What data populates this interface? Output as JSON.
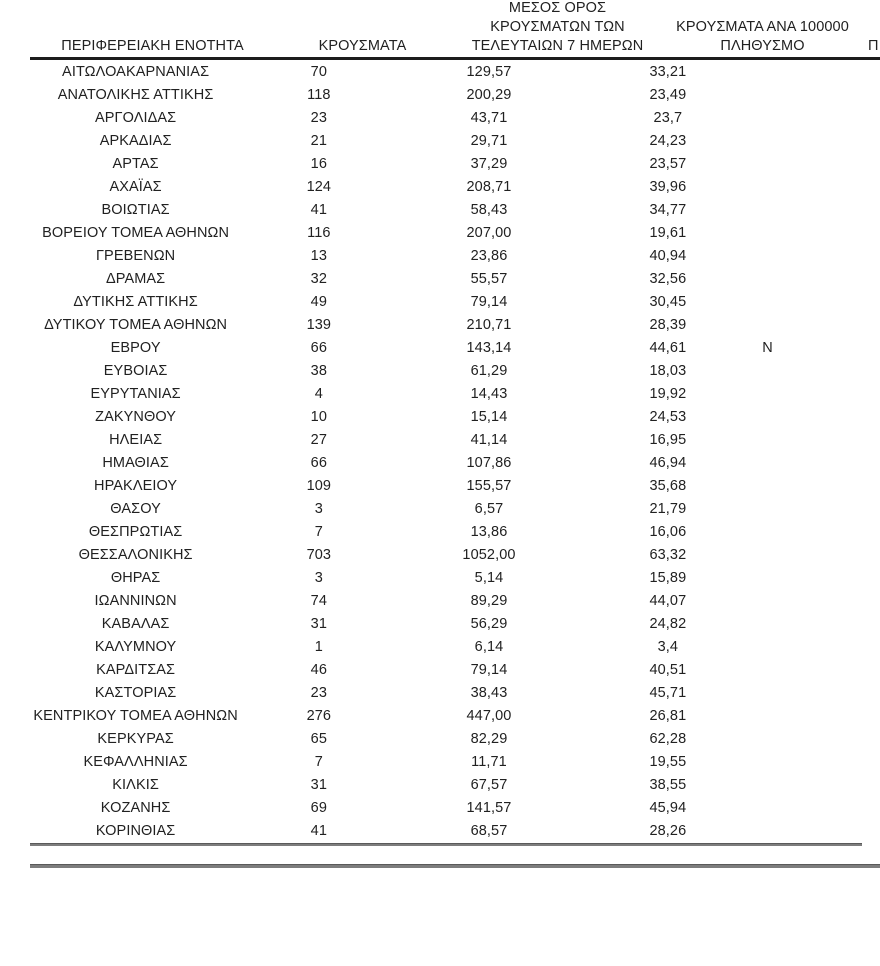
{
  "page": {
    "background_color": "#ffffff",
    "text_color": "#212121",
    "header_rule_color": "#1c1c1c",
    "bottom_rule_color": "#7d7d7d"
  },
  "table": {
    "headers": {
      "region": "ΠΕΡΙΦΕΡΕΙΑΚΗ ΕΝΟΤΗΤΑ",
      "cases": "ΚΡΟΥΣΜΑΤΑ",
      "avg7_lines": [
        "ΜΕΣΟΣ ΟΡΟΣ",
        "ΚΡΟΥΣΜΑΤΩΝ ΤΩΝ",
        "ΤΕΛΕΥΤΑΙΩΝ 7 ΗΜΕΡΩΝ"
      ],
      "per100k_lines": [
        "ΚΡΟΥΣΜΑΤΑ ΑΝΑ 100000",
        "ΠΛΗΘΥΣΜΟ"
      ],
      "cutoff": "Π"
    },
    "rows": [
      {
        "region": "ΑΙΤΩΛΟΑΚΑΡΝΑΝΙΑΣ",
        "cases": "70",
        "avg7": "129,57",
        "per100k": "33,21",
        "extra": ""
      },
      {
        "region": "ΑΝΑΤΟΛΙΚΗΣ ΑΤΤΙΚΗΣ",
        "cases": "118",
        "avg7": "200,29",
        "per100k": "23,49",
        "extra": ""
      },
      {
        "region": "ΑΡΓΟΛΙΔΑΣ",
        "cases": "23",
        "avg7": "43,71",
        "per100k": "23,7",
        "extra": ""
      },
      {
        "region": "ΑΡΚΑΔΙΑΣ",
        "cases": "21",
        "avg7": "29,71",
        "per100k": "24,23",
        "extra": ""
      },
      {
        "region": "ΑΡΤΑΣ",
        "cases": "16",
        "avg7": "37,29",
        "per100k": "23,57",
        "extra": ""
      },
      {
        "region": "ΑΧΑΪΑΣ",
        "cases": "124",
        "avg7": "208,71",
        "per100k": "39,96",
        "extra": ""
      },
      {
        "region": "ΒΟΙΩΤΙΑΣ",
        "cases": "41",
        "avg7": "58,43",
        "per100k": "34,77",
        "extra": ""
      },
      {
        "region": "ΒΟΡΕΙΟΥ ΤΟΜΕΑ ΑΘΗΝΩΝ",
        "cases": "116",
        "avg7": "207,00",
        "per100k": "19,61",
        "extra": ""
      },
      {
        "region": "ΓΡΕΒΕΝΩΝ",
        "cases": "13",
        "avg7": "23,86",
        "per100k": "40,94",
        "extra": ""
      },
      {
        "region": "ΔΡΑΜΑΣ",
        "cases": "32",
        "avg7": "55,57",
        "per100k": "32,56",
        "extra": ""
      },
      {
        "region": "ΔΥΤΙΚΗΣ ΑΤΤΙΚΗΣ",
        "cases": "49",
        "avg7": "79,14",
        "per100k": "30,45",
        "extra": ""
      },
      {
        "region": "ΔΥΤΙΚΟΥ ΤΟΜΕΑ ΑΘΗΝΩΝ",
        "cases": "139",
        "avg7": "210,71",
        "per100k": "28,39",
        "extra": ""
      },
      {
        "region": "ΕΒΡΟΥ",
        "cases": "66",
        "avg7": "143,14",
        "per100k": "44,61",
        "extra": "Ν"
      },
      {
        "region": "ΕΥΒΟΙΑΣ",
        "cases": "38",
        "avg7": "61,29",
        "per100k": "18,03",
        "extra": ""
      },
      {
        "region": "ΕΥΡΥΤΑΝΙΑΣ",
        "cases": "4",
        "avg7": "14,43",
        "per100k": "19,92",
        "extra": ""
      },
      {
        "region": "ΖΑΚΥΝΘΟΥ",
        "cases": "10",
        "avg7": "15,14",
        "per100k": "24,53",
        "extra": ""
      },
      {
        "region": "ΗΛΕΙΑΣ",
        "cases": "27",
        "avg7": "41,14",
        "per100k": "16,95",
        "extra": ""
      },
      {
        "region": "ΗΜΑΘΙΑΣ",
        "cases": "66",
        "avg7": "107,86",
        "per100k": "46,94",
        "extra": ""
      },
      {
        "region": "ΗΡΑΚΛΕΙΟΥ",
        "cases": "109",
        "avg7": "155,57",
        "per100k": "35,68",
        "extra": ""
      },
      {
        "region": "ΘΑΣΟΥ",
        "cases": "3",
        "avg7": "6,57",
        "per100k": "21,79",
        "extra": ""
      },
      {
        "region": "ΘΕΣΠΡΩΤΙΑΣ",
        "cases": "7",
        "avg7": "13,86",
        "per100k": "16,06",
        "extra": ""
      },
      {
        "region": "ΘΕΣΣΑΛΟΝΙΚΗΣ",
        "cases": "703",
        "avg7": "1052,00",
        "per100k": "63,32",
        "extra": ""
      },
      {
        "region": "ΘΗΡΑΣ",
        "cases": "3",
        "avg7": "5,14",
        "per100k": "15,89",
        "extra": ""
      },
      {
        "region": "ΙΩΑΝΝΙΝΩΝ",
        "cases": "74",
        "avg7": "89,29",
        "per100k": "44,07",
        "extra": ""
      },
      {
        "region": "ΚΑΒΑΛΑΣ",
        "cases": "31",
        "avg7": "56,29",
        "per100k": "24,82",
        "extra": ""
      },
      {
        "region": "ΚΑΛΥΜΝΟΥ",
        "cases": "1",
        "avg7": "6,14",
        "per100k": "3,4",
        "extra": ""
      },
      {
        "region": "ΚΑΡΔΙΤΣΑΣ",
        "cases": "46",
        "avg7": "79,14",
        "per100k": "40,51",
        "extra": ""
      },
      {
        "region": "ΚΑΣΤΟΡΙΑΣ",
        "cases": "23",
        "avg7": "38,43",
        "per100k": "45,71",
        "extra": ""
      },
      {
        "region": "ΚΕΝΤΡΙΚΟΥ ΤΟΜΕΑ ΑΘΗΝΩΝ",
        "cases": "276",
        "avg7": "447,00",
        "per100k": "26,81",
        "extra": ""
      },
      {
        "region": "ΚΕΡΚΥΡΑΣ",
        "cases": "65",
        "avg7": "82,29",
        "per100k": "62,28",
        "extra": ""
      },
      {
        "region": "ΚΕΦΑΛΛΗΝΙΑΣ",
        "cases": "7",
        "avg7": "11,71",
        "per100k": "19,55",
        "extra": ""
      },
      {
        "region": "ΚΙΛΚΙΣ",
        "cases": "31",
        "avg7": "67,57",
        "per100k": "38,55",
        "extra": ""
      },
      {
        "region": "ΚΟΖΑΝΗΣ",
        "cases": "69",
        "avg7": "141,57",
        "per100k": "45,94",
        "extra": ""
      },
      {
        "region": "ΚΟΡΙΝΘΙΑΣ",
        "cases": "41",
        "avg7": "68,57",
        "per100k": "28,26",
        "extra": ""
      }
    ]
  }
}
